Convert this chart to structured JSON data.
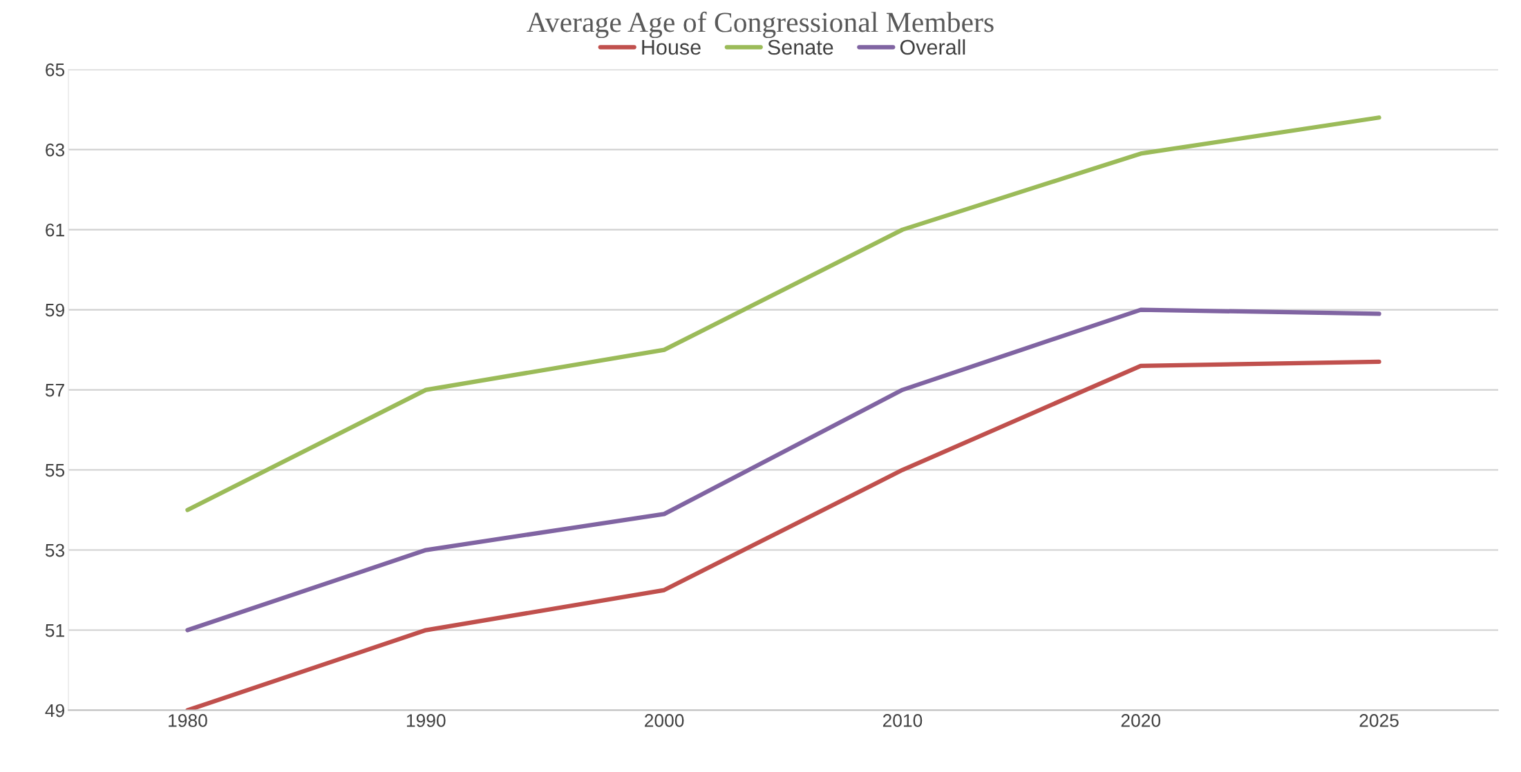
{
  "chart_data": {
    "type": "line",
    "title": "Average Age of Congressional Members",
    "categories": [
      "1980",
      "1990",
      "2000",
      "2010",
      "2020",
      "2025"
    ],
    "series": [
      {
        "name": "House",
        "color": "#c0504d",
        "values": [
          49,
          51,
          52,
          55,
          57.6,
          57.7
        ]
      },
      {
        "name": "Senate",
        "color": "#9bbb59",
        "values": [
          54,
          57,
          58,
          61,
          62.9,
          63.8
        ]
      },
      {
        "name": "Overall",
        "color": "#8064a2",
        "values": [
          51,
          53,
          53.9,
          57,
          59,
          58.9
        ]
      }
    ],
    "ylim": [
      49,
      65
    ],
    "yticks": [
      49,
      51,
      53,
      55,
      57,
      59,
      61,
      63,
      65
    ],
    "grid": "y",
    "legend": "top",
    "marker": "none",
    "line_style": "solid"
  }
}
